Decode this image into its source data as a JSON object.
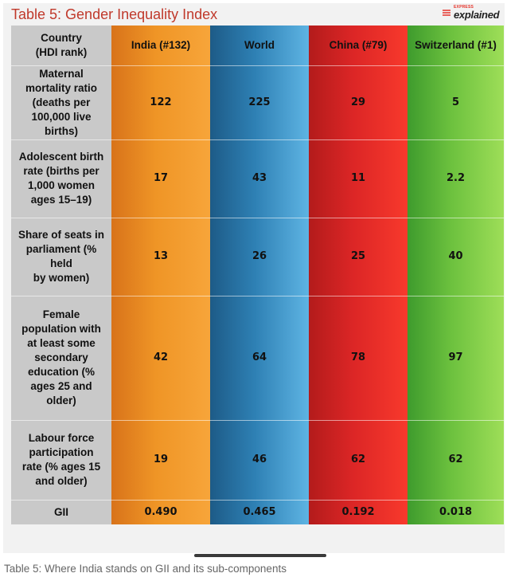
{
  "title": "Table 5: Gender Inequality Index",
  "brand": {
    "small": "EXPRESS",
    "main": "explained"
  },
  "caption": "Table 5: Where India stands on GII and its sub-components",
  "colors": {
    "title": "#c0392b",
    "india": "#ef9526",
    "world": "#2e80b4",
    "china": "#dc2626",
    "switzerland": "#6cc13e",
    "label_column": "#c9c9c9"
  },
  "chart_data": {
    "type": "table",
    "header_label": [
      "Country",
      "(HDI rank)"
    ],
    "columns": [
      "India (#132)",
      "World",
      "China (#79)",
      "Switzerland (#1)"
    ],
    "rows": [
      {
        "label": [
          "Maternal",
          "mortality ratio",
          "(deaths per",
          "100,000 live",
          "births)"
        ],
        "values": [
          "122",
          "225",
          "29",
          "5"
        ]
      },
      {
        "label": [
          "Adolescent birth",
          "rate (births per",
          "1,000 women",
          "ages 15–19)"
        ],
        "values": [
          "17",
          "43",
          "11",
          "2.2"
        ]
      },
      {
        "label": [
          "Share of seats in",
          "parliament (%",
          "held",
          "by women)"
        ],
        "values": [
          "13",
          "26",
          "25",
          "40"
        ]
      },
      {
        "label": [
          "Female",
          "population with",
          "at least some",
          "secondary",
          "education (%",
          "ages 25 and",
          "older)"
        ],
        "values": [
          "42",
          "64",
          "78",
          "97"
        ]
      },
      {
        "label": [
          "Labour force",
          "participation",
          "rate (% ages 15",
          "and older)"
        ],
        "values": [
          "19",
          "46",
          "62",
          "62"
        ]
      },
      {
        "label": [
          "GII"
        ],
        "values": [
          "0.490",
          "0.465",
          "0.192",
          "0.018"
        ]
      }
    ]
  }
}
